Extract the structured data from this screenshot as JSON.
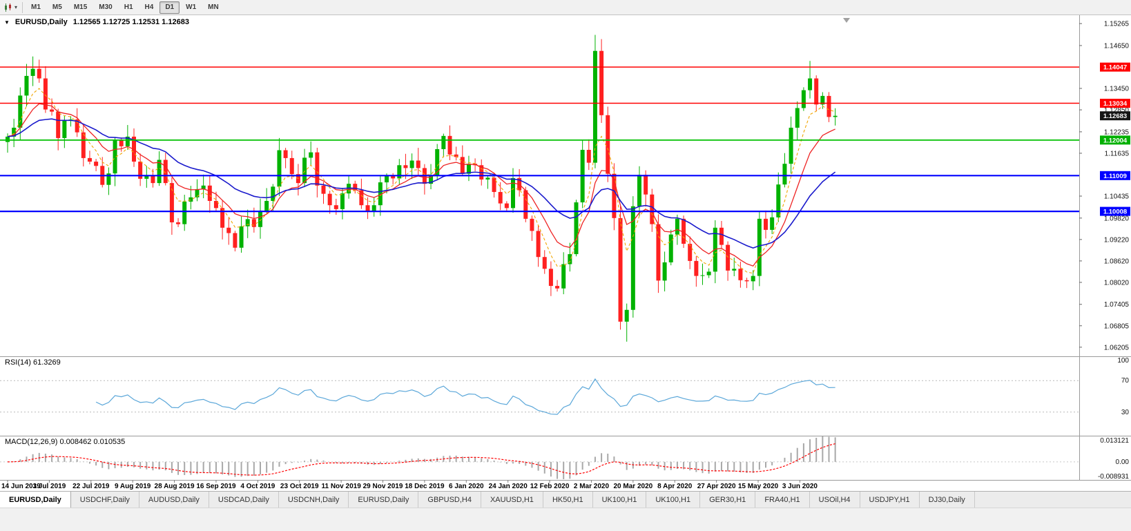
{
  "toolbar": {
    "timeframes": [
      "M1",
      "M5",
      "M15",
      "M30",
      "H1",
      "H4",
      "D1",
      "W1",
      "MN"
    ],
    "active_timeframe": "D1"
  },
  "header": {
    "collapse_icon": "▼",
    "symbol": "EURUSD,Daily",
    "ohlc": "1.12565 1.12725 1.12531 1.12683"
  },
  "panes": {
    "rsi": {
      "label": "RSI(14) 61.3269",
      "value": "61.3269",
      "axis": [
        "100",
        "70",
        "30"
      ],
      "levels": [
        70,
        30
      ],
      "line_color": "#5ba7d9"
    },
    "macd": {
      "label": "MACD(12,26,9) 0.008462 0.010535",
      "values": [
        "0.008462",
        "0.010535"
      ],
      "axis": [
        "0.013121",
        "0.00",
        "-0.008931"
      ],
      "hist_color": "#a8a8a8",
      "signal_color": "#ff0000"
    }
  },
  "price_axis": {
    "ticks": [
      "1.15265",
      "1.14650",
      "1.13450",
      "1.12850",
      "1.12235",
      "1.11635",
      "1.10435",
      "1.09820",
      "1.09220",
      "1.08620",
      "1.08020",
      "1.07405",
      "1.06805",
      "1.06205"
    ],
    "badges": [
      {
        "label": "1.14047",
        "value": 1.14047,
        "bg": "#ff0000"
      },
      {
        "label": "1.13034",
        "value": 1.13034,
        "bg": "#ff0000"
      },
      {
        "label": "1.12683",
        "value": 1.12683,
        "bg": "#151515"
      },
      {
        "label": "1.12004",
        "value": 1.12004,
        "bg": "#00b000"
      },
      {
        "label": "1.11009",
        "value": 1.11009,
        "bg": "#0000ff"
      },
      {
        "label": "1.10008",
        "value": 1.10008,
        "bg": "#0000ff"
      }
    ]
  },
  "tabs": {
    "active_index": 0,
    "items": [
      "EURUSD,Daily",
      "USDCHF,Daily",
      "AUDUSD,Daily",
      "USDCAD,Daily",
      "USDCNH,Daily",
      "EURUSD,Daily",
      "GBPUSD,H4",
      "XAUUSD,H1",
      "HK50,H1",
      "UK100,H1",
      "UK100,H1",
      "GER30,H1",
      "FRA40,H1",
      "USOil,H4",
      "USDJPY,H1",
      "DJ30,Daily"
    ]
  },
  "chart_data": {
    "type": "candlestick",
    "symbol": "EURUSD",
    "timeframe": "Daily",
    "title": "EURUSD,Daily",
    "ohlc_display": {
      "open": 1.12565,
      "high": 1.12725,
      "low": 1.12531,
      "close": 1.12683
    },
    "ylim": [
      1.0595,
      1.155
    ],
    "dates": [
      "14 Jun 2019",
      "3 Jul 2019",
      "22 Jul 2019",
      "9 Aug 2019",
      "28 Aug 2019",
      "16 Sep 2019",
      "4 Oct 2019",
      "23 Oct 2019",
      "11 Nov 2019",
      "29 Nov 2019",
      "18 Dec 2019",
      "6 Jan 2020",
      "24 Jan 2020",
      "12 Feb 2020",
      "2 Mar 2020",
      "20 Mar 2020",
      "8 Apr 2020",
      "27 Apr 2020",
      "15 May 2020",
      "3 Jun 2020"
    ],
    "first_open": 1.1195,
    "closes": [
      1.121,
      1.1235,
      1.1325,
      1.138,
      1.14,
      1.1373,
      1.1286,
      1.128,
      1.1206,
      1.1256,
      1.1258,
      1.1222,
      1.115,
      1.114,
      1.1128,
      1.1075,
      1.1107,
      1.12,
      1.1183,
      1.121,
      1.114,
      1.1092,
      1.11,
      1.108,
      1.1145,
      1.108,
      1.097,
      1.0965,
      1.1028,
      1.104,
      1.1063,
      1.1073,
      1.103,
      1.101,
      1.0955,
      1.094,
      1.0899,
      1.0959,
      1.0979,
      1.0957,
      1.1003,
      1.103,
      1.107,
      1.1172,
      1.115,
      1.1105,
      1.108,
      1.1151,
      1.1166,
      1.1073,
      1.105,
      1.1018,
      1.1007,
      1.1051,
      1.1078,
      1.106,
      1.1018,
      1.1,
      1.1018,
      1.1082,
      1.11,
      1.1093,
      1.113,
      1.1122,
      1.1143,
      1.1122,
      1.1078,
      1.11,
      1.1175,
      1.1212,
      1.116,
      1.1153,
      1.1106,
      1.1134,
      1.113,
      1.109,
      1.1095,
      1.1055,
      1.1023,
      1.101,
      1.1094,
      1.106,
      1.098,
      1.0946,
      1.0873,
      1.084,
      1.0792,
      1.0785,
      1.0853,
      1.0881,
      1.1026,
      1.1173,
      1.1137,
      1.145,
      1.127,
      1.1106,
      1.0982,
      1.0692,
      1.0725,
      1.1015,
      1.1103,
      1.1048,
      1.0965,
      1.0807,
      1.0858,
      1.0936,
      1.098,
      1.091,
      1.0862,
      1.082,
      1.0822,
      1.0832,
      1.0955,
      1.0907,
      1.0835,
      1.084,
      1.0808,
      1.0805,
      1.082,
      1.098,
      1.0949,
      1.0984,
      1.1076,
      1.1134,
      1.1235,
      1.129,
      1.134,
      1.1373,
      1.13,
      1.1324,
      1.1265,
      1.12683
    ],
    "extremes": [
      {
        "i": 4,
        "h": 1.1412
      },
      {
        "i": 93,
        "h": 1.1495
      },
      {
        "i": 97,
        "l": 1.067
      },
      {
        "i": 98,
        "l": 1.0636
      },
      {
        "i": 127,
        "h": 1.1422
      }
    ],
    "colors": {
      "up": "#00b200",
      "down": "#ff2020"
    },
    "mas": [
      {
        "period": 5,
        "color": "#f0a500",
        "dash": "4 3",
        "width": 1.1
      },
      {
        "period": 10,
        "color": "#ee2222",
        "dash": "",
        "width": 1.3
      },
      {
        "period": 25,
        "color": "#1a1acc",
        "dash": "",
        "width": 1.6
      }
    ],
    "levels": [
      {
        "value": 1.14047,
        "color": "#ff0000",
        "width": 1.5
      },
      {
        "value": 1.13034,
        "color": "#ff0000",
        "width": 1.5
      },
      {
        "value": 1.12004,
        "color": "#00c000",
        "width": 1.8
      },
      {
        "value": 1.11009,
        "color": "#0000ff",
        "width": 2.2
      },
      {
        "value": 1.10008,
        "color": "#0000ff",
        "width": 2.2
      }
    ],
    "rsi_period": 14,
    "macd_params": [
      12,
      26,
      9
    ]
  }
}
